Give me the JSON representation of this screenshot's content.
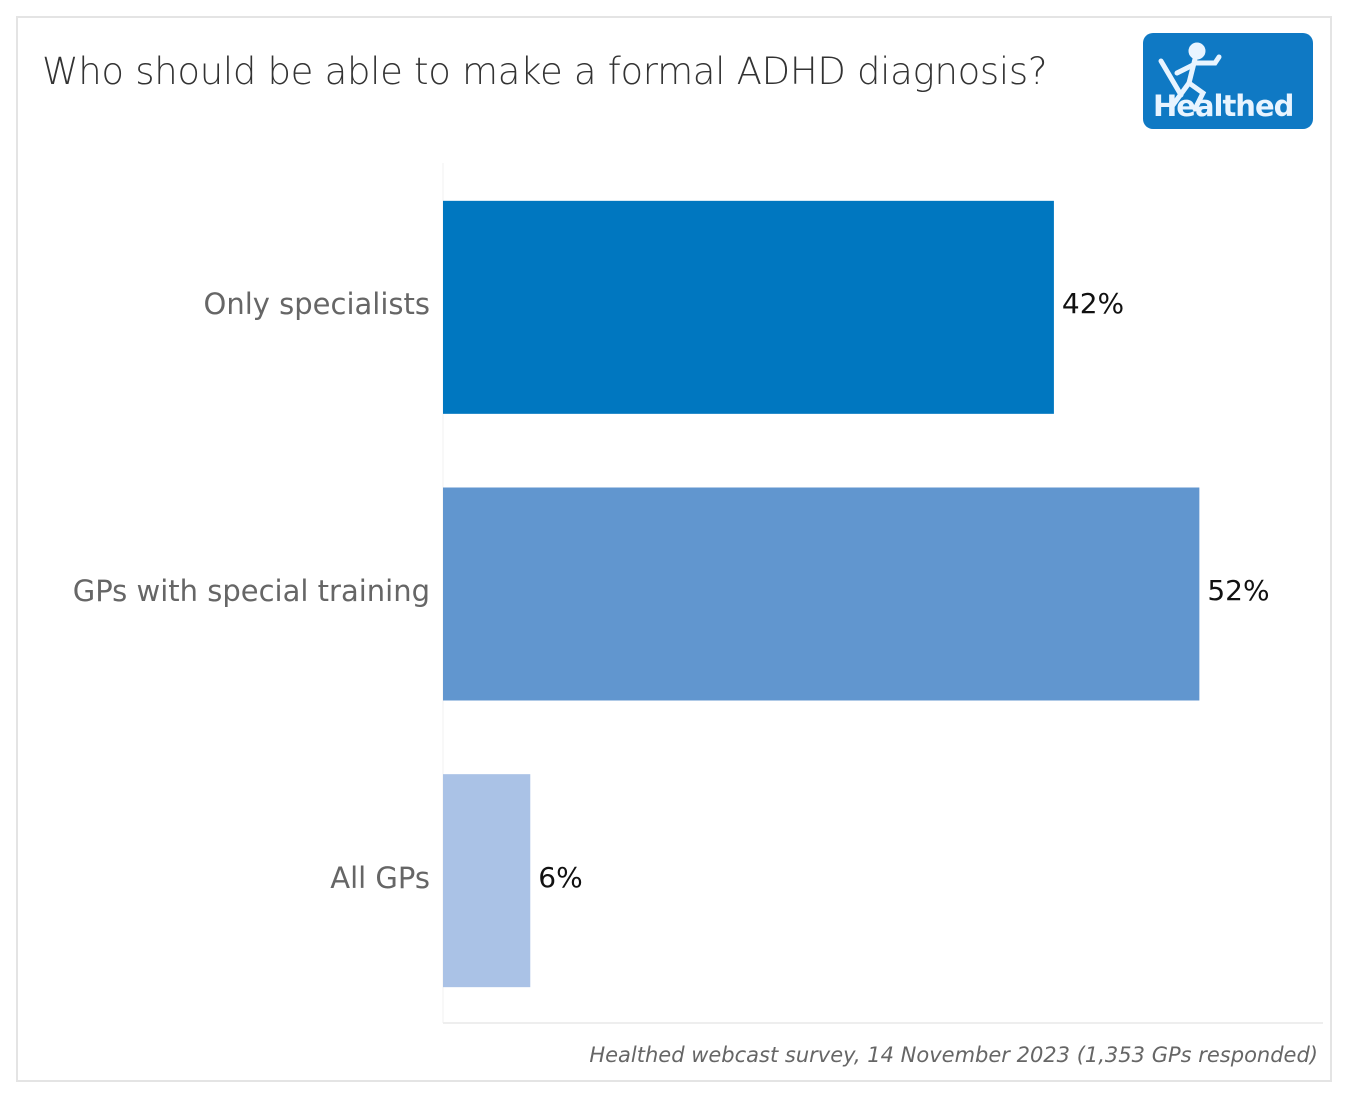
{
  "header": {
    "title": "Who should be able to make a formal ADHD diagnosis?",
    "logo_text": "Healthed"
  },
  "footer": {
    "source": "Healthed webcast survey, 14 November 2023 (1,353 GPs responded)"
  },
  "chart_data": {
    "type": "bar",
    "orientation": "horizontal",
    "title": "Who should be able to make a formal ADHD diagnosis?",
    "categories": [
      "Only specialists",
      "GPs with special training",
      "All GPs"
    ],
    "values": [
      42,
      52,
      6
    ],
    "labels": [
      "42%",
      "52%",
      "6%"
    ],
    "colors": [
      "#0077c0",
      "#6196cf",
      "#aac2e6"
    ],
    "xlabel": "",
    "ylabel": "",
    "xlim": [
      0,
      60.5
    ],
    "grid": false
  }
}
